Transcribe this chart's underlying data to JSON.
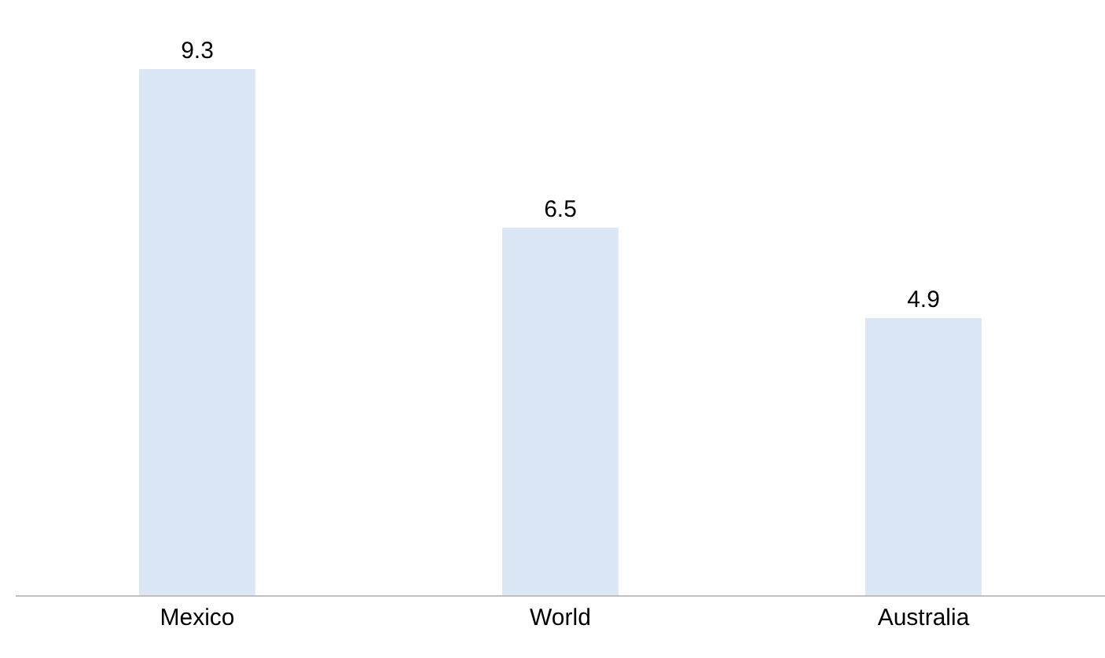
{
  "chart_data": {
    "type": "bar",
    "categories": [
      "Mexico",
      "World",
      "Australia"
    ],
    "values": [
      9.3,
      6.5,
      4.9
    ],
    "color": "#dce7f5",
    "data_labels": true
  }
}
